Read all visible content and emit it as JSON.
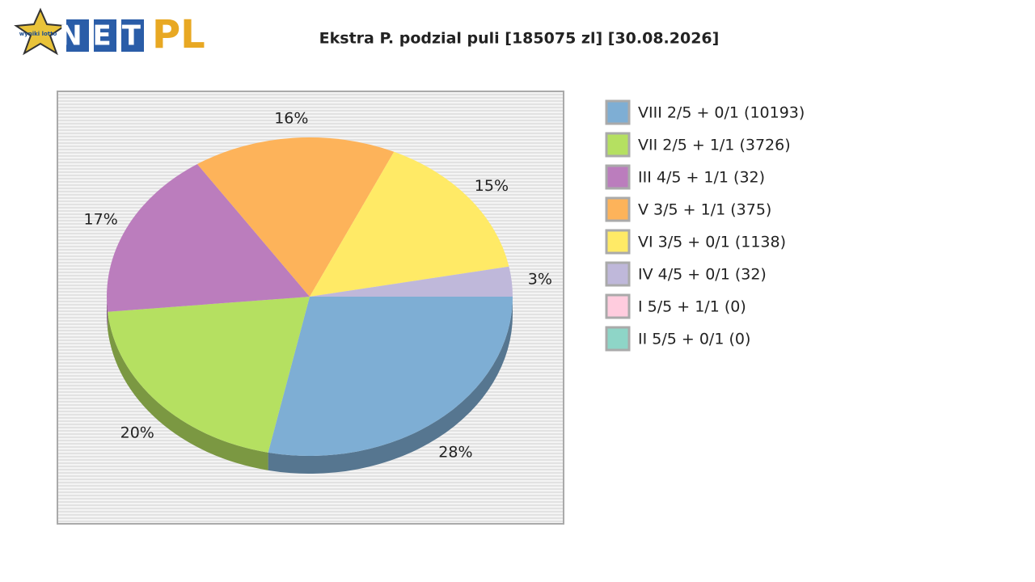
{
  "logo": {
    "badge": "wyniki lotto",
    "text": "NET",
    "accent": "PL"
  },
  "chart_data": {
    "type": "pie",
    "title": "Ekstra P. podzial puli [185075 zl] [30.08.2026]",
    "categories": [
      "VIII 2/5 + 0/1 (10193)",
      "VII 2/5 + 1/1 (3726)",
      "III 4/5 + 1/1 (32)",
      "V 3/5 + 1/1 (375)",
      "VI 3/5 + 0/1 (1138)",
      "IV 4/5 + 0/1 (32)",
      "I 5/5 + 1/1 (0)",
      "II 5/5 + 0/1 (0)"
    ],
    "values": [
      28,
      20,
      17,
      16,
      15,
      3,
      0,
      0
    ],
    "value_labels": [
      "28%",
      "20%",
      "17%",
      "16%",
      "15%",
      "3%",
      null,
      null
    ],
    "colors": [
      "#7eaed4",
      "#b5e061",
      "#bb7dbd",
      "#fdb35a",
      "#ffea66",
      "#bfb8da",
      "#ffccde",
      "#8ed5c7"
    ],
    "legend": "right"
  }
}
